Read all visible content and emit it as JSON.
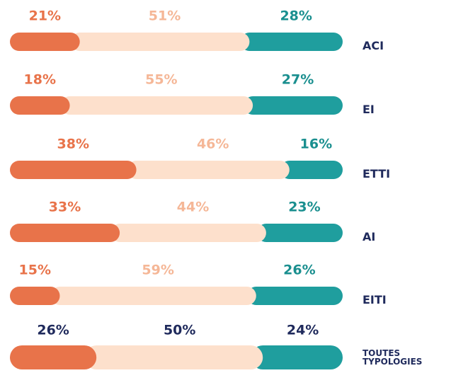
{
  "chart_data": {
    "type": "stacked_bar_100",
    "categories": [
      "ACI",
      "EI",
      "ETTI",
      "AI",
      "EITI",
      "TOUTES TYPOLOGIES"
    ],
    "series": [
      {
        "color": "#e8734a",
        "label_color": "#e8734a",
        "values": [
          21,
          18,
          38,
          33,
          15,
          26
        ],
        "value_labels": [
          "21%",
          "18%",
          "38%",
          "33%",
          "15%",
          "26%"
        ]
      },
      {
        "color": "#fde0cc",
        "label_color": "#f5b797",
        "values": [
          51,
          55,
          46,
          44,
          59,
          50
        ],
        "value_labels": [
          "51%",
          "55%",
          "46%",
          "44%",
          "59%",
          "50%"
        ]
      },
      {
        "color": "#1f9e9e",
        "label_color": "#1a8f8f",
        "values": [
          28,
          27,
          16,
          23,
          26,
          24
        ],
        "value_labels": [
          "28%",
          "27%",
          "16%",
          "23%",
          "26%",
          "24%"
        ]
      }
    ],
    "total_label_color": "#1f2a5c"
  }
}
